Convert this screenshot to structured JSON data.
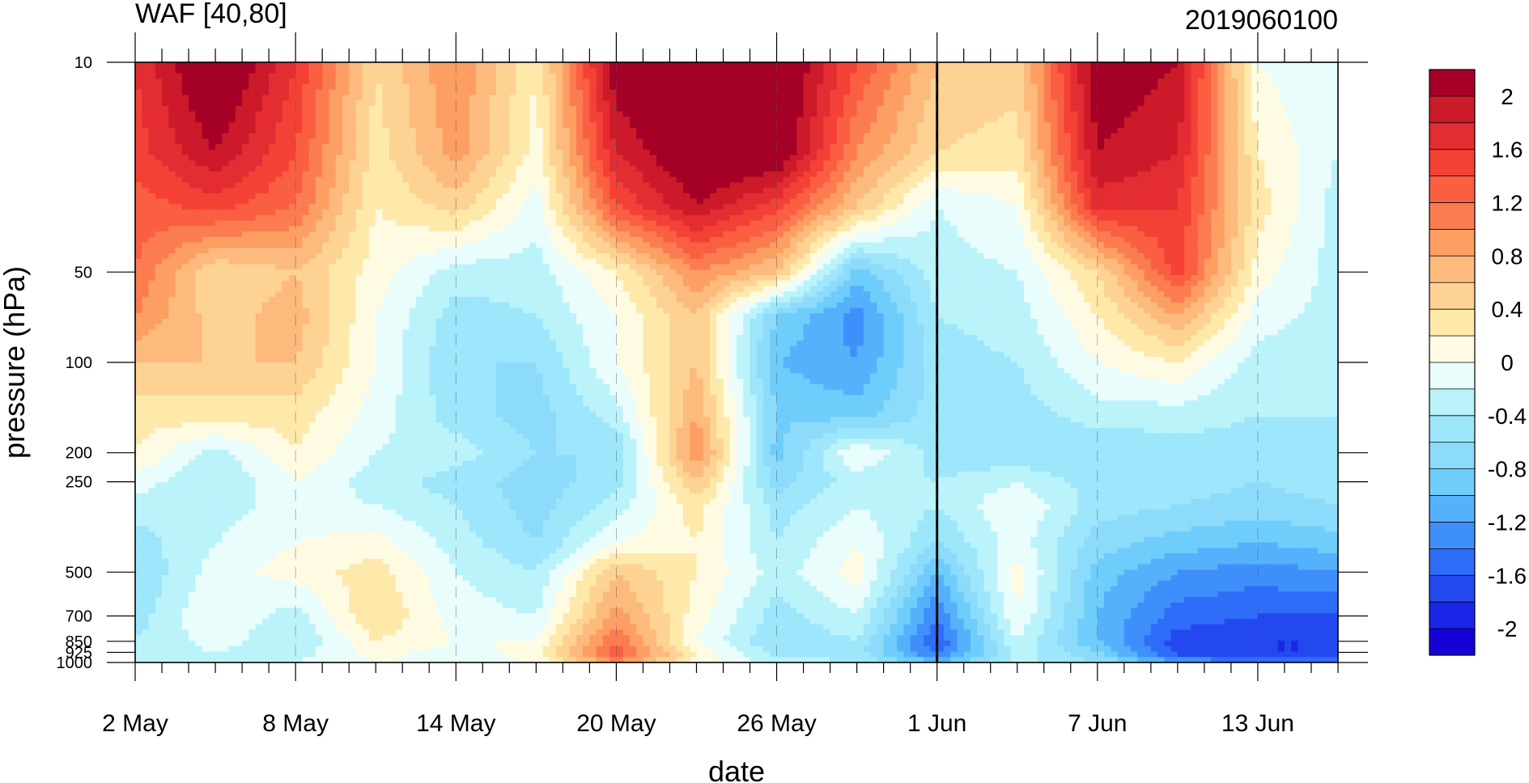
{
  "chart_data": {
    "type": "heatmap",
    "title": "WAF [40,80]",
    "subtitle": "2019060100",
    "xlabel": "date",
    "ylabel": "pressure (hPa)",
    "x_tick_labels": [
      "2 May",
      "8 May",
      "14 May",
      "20 May",
      "26 May",
      "1 Jun",
      "7 Jun",
      "13 Jun"
    ],
    "x_range_days": [
      0,
      45
    ],
    "y_axis": "log",
    "y_tick_labels": [
      "10",
      "50",
      "100",
      "200",
      "250",
      "500",
      "700",
      "850",
      "925",
      "1000"
    ],
    "y_range": [
      1000,
      10
    ],
    "reference_date_line": "1 Jun",
    "colorbar_labels": [
      "2",
      "1.6",
      "1.2",
      "0.8",
      "0.4",
      "0",
      "-0.4",
      "-0.8",
      "-1.2",
      "-1.6",
      "-2"
    ],
    "levels": [
      2.2,
      2.0,
      1.8,
      1.6,
      1.4,
      1.2,
      1.0,
      0.8,
      0.6,
      0.4,
      0.2,
      0.0,
      -0.2,
      -0.4,
      -0.6,
      -0.8,
      -1.0,
      -1.2,
      -1.4,
      -1.6,
      -1.8,
      -2.0,
      -2.2
    ],
    "colors": [
      "#a50026",
      "#cc1a2a",
      "#e42d32",
      "#f44136",
      "#fa5f42",
      "#fc7c52",
      "#fd9e62",
      "#fcba7c",
      "#fdd293",
      "#fee9aa",
      "#fffbe2",
      "#e9fdfd",
      "#bbf3fb",
      "#9de6fb",
      "#8ddbfb",
      "#6fcdfb",
      "#55b1fb",
      "#3f8ffb",
      "#2f6cf8",
      "#2348f0",
      "#1a26e8",
      "#1600d8"
    ],
    "x_days": [
      0,
      3,
      6,
      9,
      12,
      15,
      18,
      21,
      24,
      27,
      30,
      33,
      36,
      39,
      42,
      45
    ],
    "pressure_levels": [
      10,
      20,
      30,
      50,
      70,
      100,
      150,
      200,
      250,
      300,
      400,
      500,
      700,
      850,
      925,
      1000
    ],
    "field": [
      [
        1.6,
        2.4,
        1.6,
        0.4,
        1.0,
        0.2,
        2.2,
        2.4,
        2.4,
        1.4,
        0.6,
        0.5,
        2.2,
        2.0,
        0.0,
        -0.2
      ],
      [
        1.5,
        2.0,
        1.4,
        0.3,
        0.9,
        0.1,
        1.8,
        2.3,
        2.3,
        1.0,
        0.4,
        0.3,
        2.0,
        1.8,
        0.2,
        -0.2
      ],
      [
        1.3,
        1.5,
        1.2,
        0.2,
        0.5,
        -0.1,
        1.4,
        2.0,
        1.5,
        0.6,
        -0.2,
        0.0,
        1.7,
        1.6,
        0.3,
        -0.3
      ],
      [
        1.2,
        0.4,
        0.6,
        0.1,
        -0.3,
        -0.3,
        0.2,
        1.0,
        0.6,
        -0.9,
        -0.3,
        -0.2,
        0.4,
        1.5,
        0.1,
        -0.3
      ],
      [
        1.0,
        0.5,
        0.7,
        0.0,
        -0.5,
        -0.4,
        0.0,
        0.6,
        -0.8,
        -1.3,
        -0.4,
        -0.3,
        0.2,
        0.8,
        -0.1,
        -0.3
      ],
      [
        0.6,
        0.6,
        0.6,
        0.0,
        -0.6,
        -0.6,
        0.0,
        0.6,
        -1.0,
        -1.2,
        -0.5,
        -0.4,
        0.0,
        0.2,
        -0.3,
        -0.3
      ],
      [
        0.3,
        0.3,
        0.3,
        -0.1,
        -0.5,
        -0.7,
        -0.3,
        0.8,
        -0.8,
        -0.9,
        -0.5,
        -0.5,
        -0.3,
        -0.3,
        -0.4,
        -0.4
      ],
      [
        0.2,
        -0.3,
        0.2,
        -0.2,
        -0.3,
        -0.6,
        -0.6,
        1.0,
        -0.9,
        0.0,
        -0.5,
        -0.6,
        -0.6,
        -0.5,
        -0.5,
        -0.4
      ],
      [
        -0.1,
        -0.4,
        0.0,
        -0.3,
        -0.5,
        -0.7,
        -0.5,
        0.6,
        -0.7,
        -0.3,
        -0.4,
        -0.2,
        -0.5,
        -0.5,
        -0.6,
        -0.5
      ],
      [
        -0.3,
        -0.3,
        -0.1,
        -0.2,
        -0.4,
        -0.7,
        -0.3,
        0.3,
        -0.5,
        -0.2,
        -0.4,
        0.0,
        -0.5,
        -0.6,
        -0.7,
        -0.6
      ],
      [
        -0.5,
        -0.2,
        0.0,
        0.1,
        -0.3,
        -0.6,
        0.0,
        0.2,
        -0.4,
        0.0,
        -0.6,
        -0.1,
        -0.7,
        -0.9,
        -1.0,
        -0.9
      ],
      [
        -0.6,
        -0.1,
        0.1,
        0.3,
        -0.2,
        -0.4,
        0.6,
        0.2,
        -0.3,
        0.1,
        -1.0,
        0.1,
        -0.9,
        -1.2,
        -1.3,
        -1.2
      ],
      [
        -0.5,
        0.0,
        -0.3,
        0.4,
        -0.1,
        -0.2,
        0.9,
        0.1,
        -0.5,
        -0.2,
        -1.4,
        0.0,
        -1.0,
        -1.5,
        -1.6,
        -1.6
      ],
      [
        -0.4,
        -0.1,
        -0.4,
        0.2,
        0.0,
        0.0,
        1.2,
        0.0,
        -0.6,
        -0.4,
        -1.6,
        -0.2,
        -1.0,
        -1.7,
        -1.8,
        -1.8
      ],
      [
        -0.4,
        -0.2,
        -0.3,
        0.1,
        -0.1,
        0.1,
        1.4,
        0.2,
        -0.5,
        -0.5,
        -1.5,
        -0.3,
        -0.8,
        -1.7,
        -1.8,
        -1.8
      ],
      [
        -0.3,
        -0.2,
        -0.2,
        0.0,
        -0.1,
        0.0,
        1.0,
        0.1,
        -0.3,
        -0.4,
        -1.0,
        -0.3,
        -0.6,
        -1.2,
        -1.4,
        -1.4
      ]
    ]
  }
}
